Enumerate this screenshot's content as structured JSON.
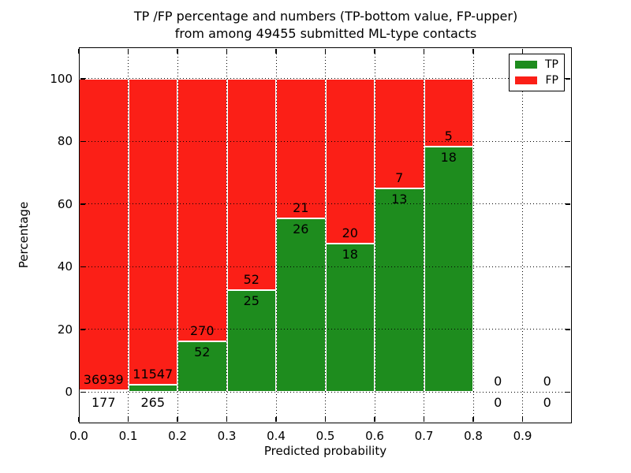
{
  "figure": {
    "title_line1": "TP /FP percentage and numbers (TP-bottom value, FP-upper)",
    "title_line2": "from among 49455 submitted ML-type contacts"
  },
  "chart_data": {
    "type": "bar",
    "stacked": true,
    "normalized_to_percent": true,
    "title": "TP /FP percentage and numbers (TP-bottom value, FP-upper) from among 49455 submitted ML-type contacts",
    "xlabel": "Predicted probability",
    "ylabel": "Percentage",
    "xlim": [
      0.0,
      1.0
    ],
    "ylim": [
      -10,
      110
    ],
    "xticks": [
      0.0,
      0.1,
      0.2,
      0.3,
      0.4,
      0.5,
      0.6,
      0.7,
      0.8,
      0.9
    ],
    "yticks": [
      0,
      20,
      40,
      60,
      80,
      100
    ],
    "grid": "dotted",
    "bin_width": 0.1,
    "series": [
      {
        "name": "TP",
        "color": "#1e8c1e"
      },
      {
        "name": "FP",
        "color": "#fb1f17"
      }
    ],
    "legend": {
      "position": "upper right",
      "entries": [
        "TP",
        "FP"
      ]
    },
    "bins": [
      {
        "x_start": 0.0,
        "tp": 177,
        "fp": 36939,
        "tp_percent": 0.48
      },
      {
        "x_start": 0.1,
        "tp": 265,
        "fp": 11547,
        "tp_percent": 2.24
      },
      {
        "x_start": 0.2,
        "tp": 52,
        "fp": 270,
        "tp_percent": 16.15
      },
      {
        "x_start": 0.3,
        "tp": 25,
        "fp": 52,
        "tp_percent": 32.47
      },
      {
        "x_start": 0.4,
        "tp": 26,
        "fp": 21,
        "tp_percent": 55.32
      },
      {
        "x_start": 0.5,
        "tp": 18,
        "fp": 20,
        "tp_percent": 47.37
      },
      {
        "x_start": 0.6,
        "tp": 13,
        "fp": 7,
        "tp_percent": 65.0
      },
      {
        "x_start": 0.7,
        "tp": 18,
        "fp": 5,
        "tp_percent": 78.26
      },
      {
        "x_start": 0.8,
        "tp": 0,
        "fp": 0,
        "tp_percent": 0
      },
      {
        "x_start": 0.9,
        "tp": 0,
        "fp": 0,
        "tp_percent": 0
      }
    ]
  }
}
